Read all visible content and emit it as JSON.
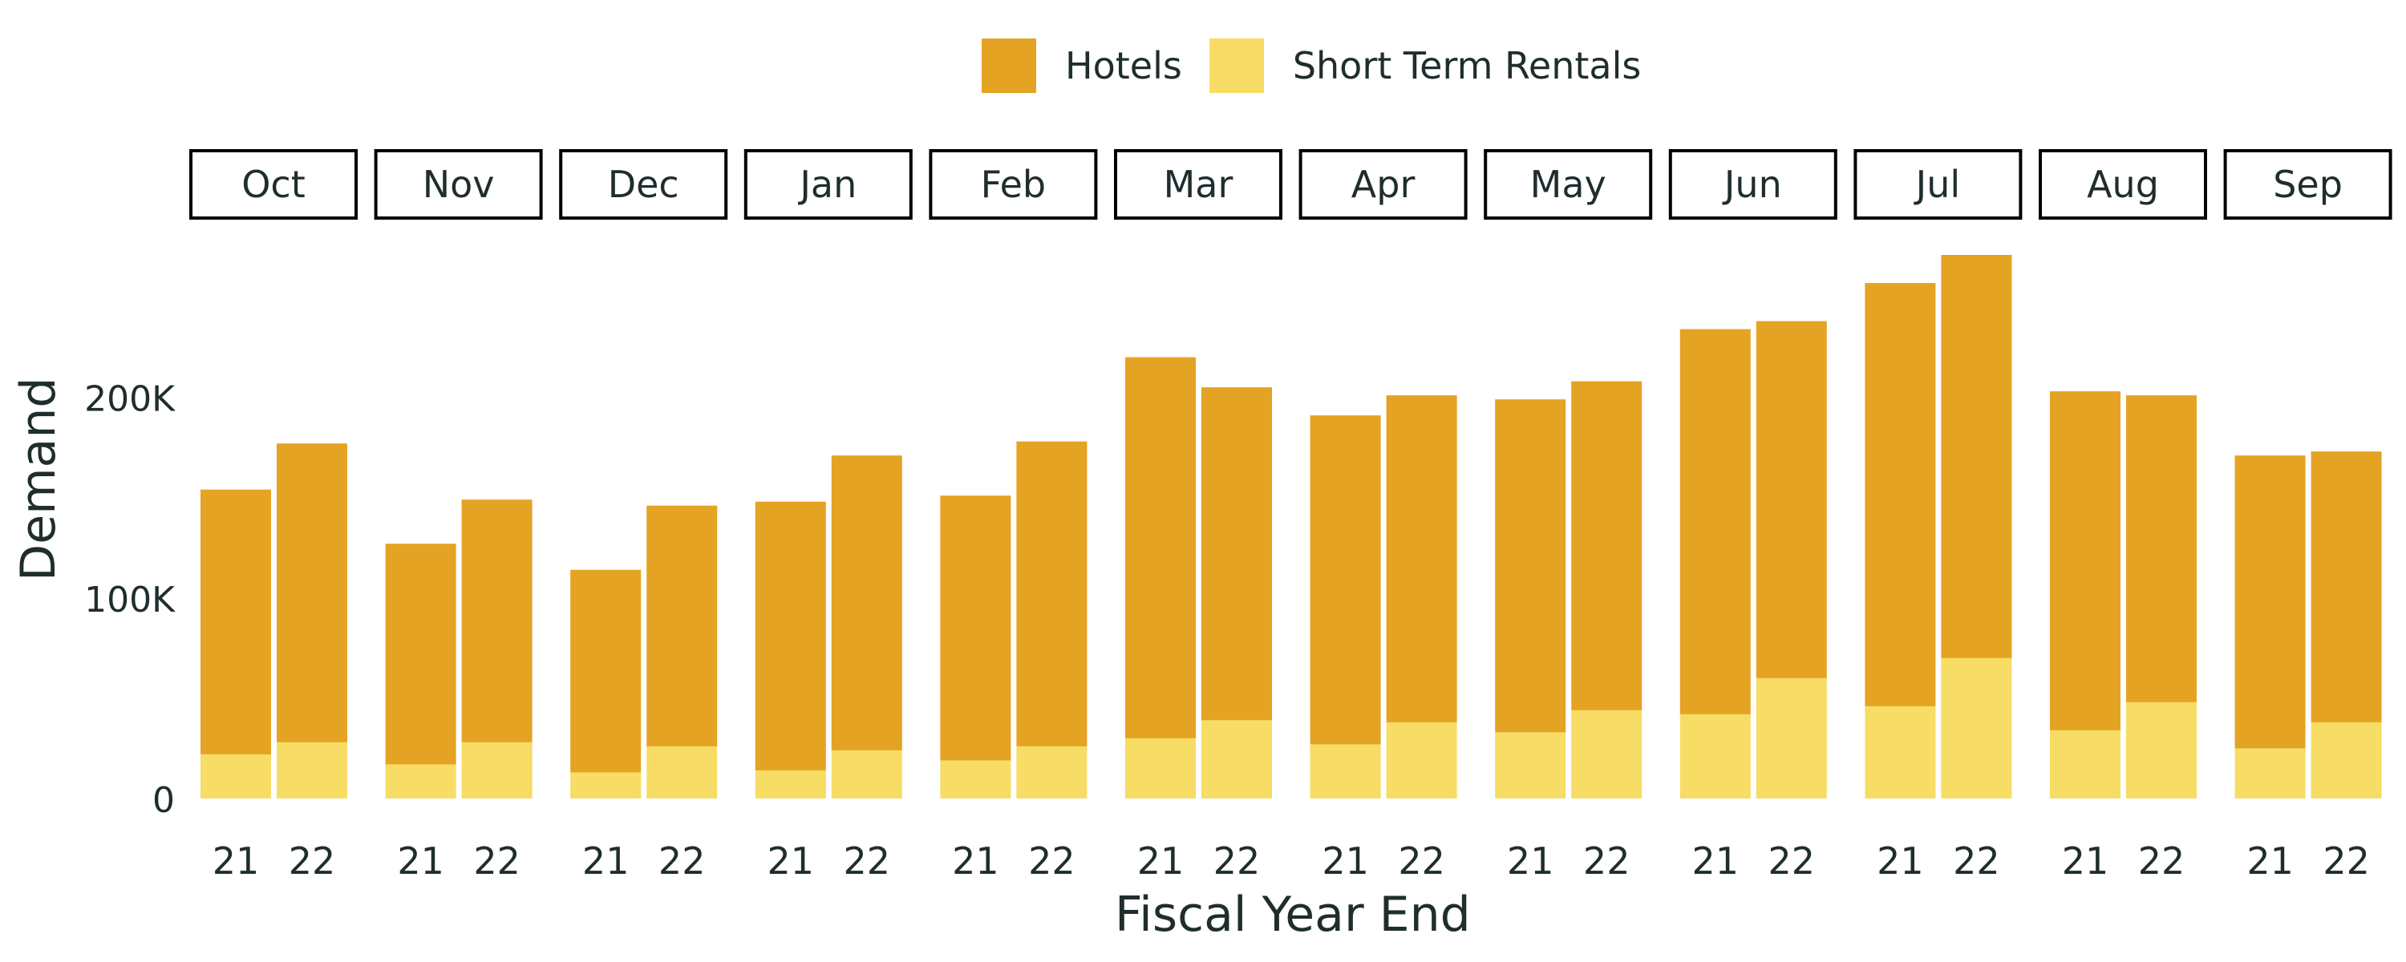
{
  "legend": {
    "hotels_label": "Hotels",
    "str_label": "Short Term Rentals"
  },
  "colors": {
    "hotels": "#E5A323",
    "short_term_rentals": "#F7DC65",
    "text": "#1f2d2d",
    "panel_border": "#000000"
  },
  "chart_data": {
    "type": "bar",
    "stacked": true,
    "faceted_by": "month",
    "months": [
      "Oct",
      "Nov",
      "Dec",
      "Jan",
      "Feb",
      "Mar",
      "Apr",
      "May",
      "Jun",
      "Jul",
      "Aug",
      "Sep"
    ],
    "x_categories": [
      "21",
      "22"
    ],
    "xlabel": "Fiscal Year End",
    "ylabel": "Demand",
    "ylim": [
      0,
      275000
    ],
    "y_ticks": [
      0,
      100000,
      200000
    ],
    "y_tick_labels": [
      "0",
      "100K",
      "200K"
    ],
    "legend_position": "top",
    "grid": false,
    "series": [
      {
        "name": "Hotels",
        "values_21": [
          132000,
          110000,
          101000,
          134000,
          132000,
          190000,
          164000,
          166000,
          192000,
          211000,
          169000,
          146000
        ],
        "values_22": [
          149000,
          121000,
          120000,
          147000,
          152000,
          166000,
          163000,
          164000,
          178000,
          201000,
          153000,
          135000
        ]
      },
      {
        "name": "Short Term Rentals",
        "values_21": [
          22000,
          17000,
          13000,
          14000,
          19000,
          30000,
          27000,
          33000,
          42000,
          46000,
          34000,
          25000
        ],
        "values_22": [
          28000,
          28000,
          26000,
          24000,
          26000,
          39000,
          38000,
          44000,
          60000,
          70000,
          48000,
          38000
        ]
      }
    ]
  }
}
